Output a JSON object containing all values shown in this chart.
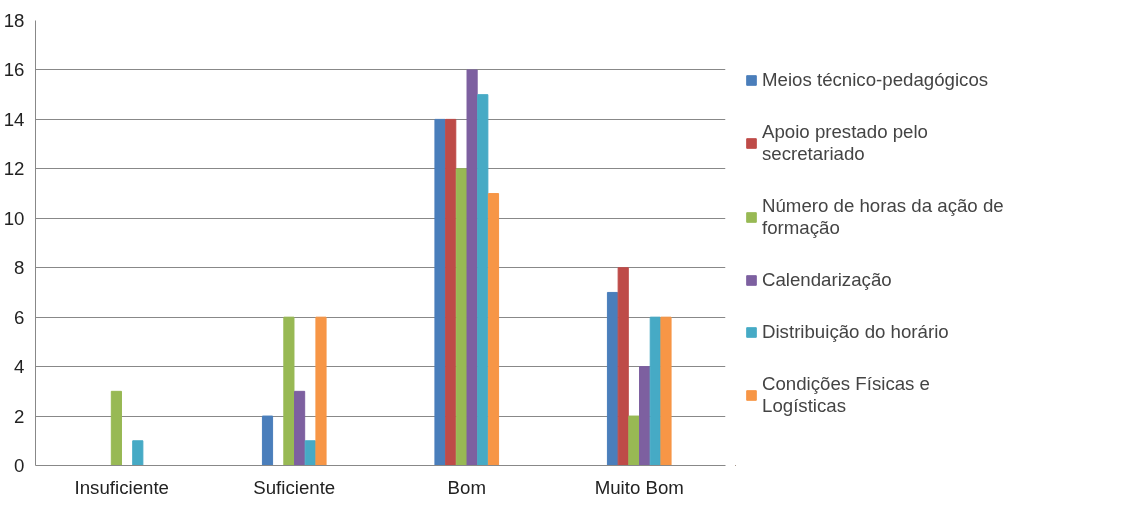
{
  "chart_data": {
    "type": "bar",
    "categories": [
      "Insuficiente",
      "Suficiente",
      "Bom",
      "Muito Bom"
    ],
    "series": [
      {
        "name": "Meios técnico-pedagógicos",
        "color": "#4a7ebb",
        "values": [
          0,
          2,
          14,
          7
        ]
      },
      {
        "name": "Apoio prestado pelo secretariado",
        "color": "#be4b48",
        "values": [
          0,
          0,
          14,
          8
        ]
      },
      {
        "name": "Número de horas da ação de formação",
        "color": "#98b954",
        "values": [
          3,
          6,
          12,
          2
        ]
      },
      {
        "name": "Calendarização",
        "color": "#7d60a0",
        "values": [
          0,
          3,
          16,
          4
        ]
      },
      {
        "name": "Distribuição do horário",
        "color": "#46aac5",
        "values": [
          1,
          1,
          15,
          6
        ]
      },
      {
        "name": "Condições Físicas e Logísticas",
        "color": "#f79646",
        "values": [
          0,
          6,
          11,
          6
        ]
      }
    ],
    "ylim": [
      0,
      18
    ],
    "yticks": [
      0,
      2,
      4,
      6,
      8,
      10,
      12,
      14,
      16,
      18
    ],
    "grid": "y",
    "legend": "right"
  }
}
